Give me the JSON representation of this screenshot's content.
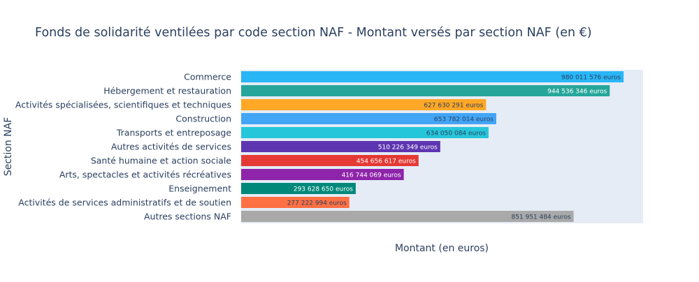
{
  "chart_data": {
    "type": "bar",
    "orientation": "horizontal",
    "title": "Fonds de solidarité ventilées par code section NAF - Montant versés par section NAF (en €)",
    "xlabel": "Montant (en euros)",
    "ylabel": "Section NAF",
    "xlim": [
      0,
      1030000000
    ],
    "grid": false,
    "legend": "none",
    "categories": [
      "Commerce",
      "Hébergement et restauration",
      "Activités spécialisées, scientifiques et techniques",
      "Construction",
      "Transports et entreposage",
      "Autres activités de services",
      "Santé humaine et action sociale",
      "Arts, spectacles et activités récréatives",
      "Enseignement",
      "Activités de services administratifs et de soutien",
      "Autres sections NAF"
    ],
    "values": [
      980011576,
      944536346,
      627630291,
      653782014,
      634050084,
      510226349,
      454656617,
      416744069,
      293628650,
      277222994,
      851951484
    ],
    "data_labels": [
      "980 011 576 euros",
      "944 536 346 euros",
      "627 630 291 euros",
      "653 782 014 euros",
      "634 050 084 euros",
      "510 226 349 euros",
      "454 656 617 euros",
      "416 744 069 euros",
      "293 628 650 euros",
      "277 222 994 euros",
      "851 951 484 euros"
    ],
    "colors": [
      "#29b6f6",
      "#26a69a",
      "#ffa726",
      "#42a5f5",
      "#26c6da",
      "#5e35b1",
      "#e53935",
      "#8e24aa",
      "#00897b",
      "#ff7043",
      "#a9a9a9"
    ],
    "label_colors": [
      "#2a3f5f",
      "#ffffff",
      "#2a3f5f",
      "#2a3f5f",
      "#2a3f5f",
      "#ffffff",
      "#ffffff",
      "#ffffff",
      "#ffffff",
      "#2a3f5f",
      "#2a3f5f"
    ],
    "plot_background": "#e5ecf6",
    "text_color": "#2a3f5f"
  }
}
